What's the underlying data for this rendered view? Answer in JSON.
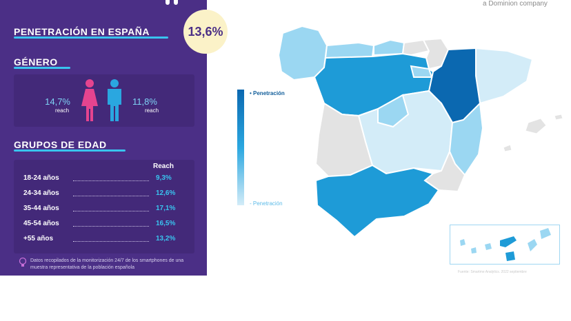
{
  "panel": {
    "penetration_title": "PENETRACIÓN EN ESPAÑA",
    "penetration_value": "13,6%",
    "gender_title": "GÉNERO",
    "gender": {
      "female_value": "14,7%",
      "female_label": "reach",
      "male_value": "11,8%",
      "male_label": "reach"
    },
    "age_title": "GRUPOS DE EDAD",
    "age_header": "Reach",
    "age_groups": [
      {
        "label": "18-24 años",
        "value": "9,3%"
      },
      {
        "label": "24-34 años",
        "value": "12,6%"
      },
      {
        "label": "35-44 años",
        "value": "17,1%"
      },
      {
        "label": "45-54 años",
        "value": "16,5%"
      },
      {
        "label": "+55 años",
        "value": "13,2%"
      }
    ],
    "footnote": "Datos recopilados de la monitorización 24/7 de los smartphones de una muestra representativa de la población española"
  },
  "map": {
    "tagline": "a Dominion company",
    "legend_high": "• Penetración",
    "legend_low": "- Penetración",
    "source": "Fuente: Smartme Analytics. 2022 septiembre",
    "colors": {
      "high": "#0b68b0",
      "mid": "#1e9bd7",
      "low": "#9bd7f2",
      "lowest": "#d3ecf8",
      "no_data": "#e3e3e3",
      "panel": "#4b2f86",
      "accent": "#39c4ef",
      "bubble": "#fbf2c8",
      "female_icon": "#e5448f",
      "male_icon": "#2aa7e0"
    },
    "regions": [
      {
        "name": "Galicia",
        "shade": "low"
      },
      {
        "name": "Asturias",
        "shade": "low"
      },
      {
        "name": "Cantabria",
        "shade": "low"
      },
      {
        "name": "País Vasco",
        "shade": "no_data"
      },
      {
        "name": "Navarra",
        "shade": "no_data"
      },
      {
        "name": "Aragón",
        "shade": "high"
      },
      {
        "name": "Cataluña",
        "shade": "lowest"
      },
      {
        "name": "Castilla y León",
        "shade": "mid"
      },
      {
        "name": "La Rioja",
        "shade": "low"
      },
      {
        "name": "Madrid",
        "shade": "low"
      },
      {
        "name": "Castilla-La Mancha",
        "shade": "lowest"
      },
      {
        "name": "Extremadura",
        "shade": "no_data"
      },
      {
        "name": "Comunidad Valenciana",
        "shade": "low"
      },
      {
        "name": "Murcia",
        "shade": "no_data"
      },
      {
        "name": "Andalucía",
        "shade": "mid"
      },
      {
        "name": "Islas Baleares",
        "shade": "no_data"
      },
      {
        "name": "Islas Canarias",
        "shade": "mid"
      }
    ]
  }
}
